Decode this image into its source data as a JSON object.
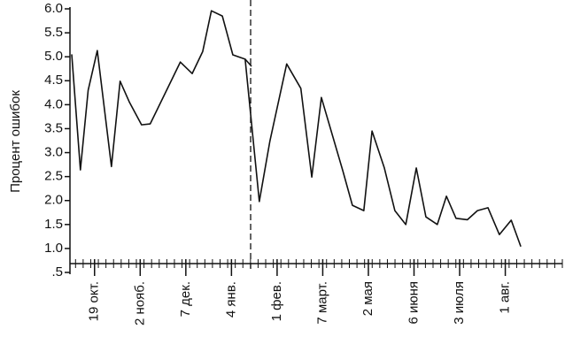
{
  "chart_data": {
    "type": "line",
    "y_label": "Процент ошибок",
    "ylim": [
      0.5,
      6.0
    ],
    "yticks": [
      {
        "value": 0.5,
        "label": ".5"
      },
      {
        "value": 1.0,
        "label": "1.0"
      },
      1.5,
      {
        "value": 2.0,
        "label": "2.0"
      },
      2.5,
      {
        "value": 3.0,
        "label": "3.0"
      },
      3.5,
      {
        "value": 4.0,
        "label": "4.0"
      },
      4.5,
      {
        "value": 5.0,
        "label": "5.0"
      },
      5.5,
      {
        "value": 6.0,
        "label": "6.0"
      }
    ],
    "xlim": [
      0.5,
      11.25
    ],
    "xticks": [
      {
        "value": 1,
        "label": "19 окт."
      },
      {
        "value": 2,
        "label": "2 нояб."
      },
      {
        "value": 3,
        "label": "7 дек."
      },
      {
        "value": 4,
        "label": "4 янв."
      },
      {
        "value": 5,
        "label": "1 фев."
      },
      {
        "value": 6,
        "label": "7 март."
      },
      {
        "value": 7,
        "label": "2 мая"
      },
      {
        "value": 8,
        "label": "6 июня"
      },
      {
        "value": 9,
        "label": "3 июля"
      },
      {
        "value": 10,
        "label": "1 авг."
      }
    ],
    "divider_x": 4.42,
    "series": [
      {
        "color": "#111111",
        "x": [
          0.5,
          0.69,
          0.86,
          1.06,
          1.37,
          1.56,
          1.76,
          2.03,
          2.22,
          2.88,
          3.14,
          3.37,
          3.56,
          3.8,
          4.03,
          4.3,
          4.61,
          4.84,
          5.21,
          5.52,
          5.76,
          5.97,
          6.44,
          6.65,
          6.9,
          7.08,
          7.35,
          7.58,
          7.82,
          8.05,
          8.26,
          8.51,
          8.71,
          8.92,
          9.17,
          9.39,
          9.62,
          9.87,
          10.13,
          10.34
        ],
        "values": [
          5.05,
          2.64,
          4.3,
          5.13,
          2.71,
          4.49,
          4.06,
          3.58,
          3.6,
          4.89,
          4.65,
          5.11,
          5.96,
          5.85,
          5.04,
          4.95,
          1.98,
          3.23,
          4.85,
          4.34,
          2.49,
          4.15,
          2.62,
          1.9,
          1.79,
          3.45,
          2.68,
          1.79,
          1.5,
          2.68,
          1.66,
          1.5,
          2.09,
          1.63,
          1.6,
          1.79,
          1.85,
          1.29,
          1.59,
          1.04
        ]
      },
      {
        "color": "#111111",
        "x": [
          4.3,
          4.44
        ],
        "values": [
          4.95,
          4.8
        ]
      }
    ]
  }
}
